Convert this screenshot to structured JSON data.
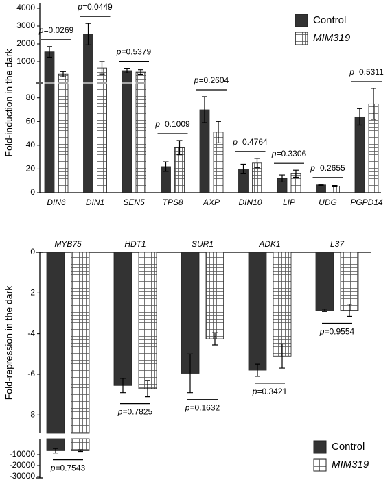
{
  "chart_data": [
    {
      "type": "bar",
      "y_label": "Fold-induction in the dark",
      "categories": [
        "DIN6",
        "DIN1",
        "SEN5",
        "TPS8",
        "AXP",
        "DIN10",
        "LIP",
        "UDG",
        "PGPD14"
      ],
      "series": [
        {
          "name": "Control",
          "color": "#333333",
          "hatch": false,
          "values": [
            1550,
            2550,
            500,
            22,
            70,
            20,
            12,
            6.5,
            64
          ],
          "errors": [
            300,
            600,
            130,
            4,
            11,
            4,
            3,
            0.5,
            7
          ]
        },
        {
          "name": "MIM319",
          "color": "#ffffff",
          "hatch": true,
          "values": [
            300,
            650,
            420,
            38,
            51,
            25,
            16,
            5.5,
            75
          ],
          "errors": [
            150,
            350,
            130,
            6,
            9,
            4,
            3,
            0.5,
            13
          ]
        }
      ],
      "p_prefix": "p=",
      "p_values": [
        "0.0269",
        "0.0449",
        "0.5379",
        "0.1009",
        "0.2604",
        "0.4764",
        "0.3306",
        "0.2655",
        "0.5311"
      ],
      "segments": [
        {
          "ylim": [
            0,
            92
          ],
          "yticks": [
            0,
            20,
            40,
            60,
            80
          ]
        },
        {
          "ylim": [
            0,
            4000
          ],
          "yticks": [
            1000,
            2000,
            3000,
            4000
          ]
        }
      ]
    },
    {
      "type": "bar",
      "y_label": "Fold-repression in the dark",
      "categories": [
        "MYB75",
        "HDT1",
        "SUR1",
        "ADK1",
        "L37"
      ],
      "series": [
        {
          "name": "Control",
          "color": "#333333",
          "hatch": false,
          "values": [
            -6500,
            -6.55,
            -5.95,
            -5.8,
            -2.85
          ],
          "errors": [
            2000,
            0.35,
            0.95,
            0.3,
            0.06
          ]
        },
        {
          "name": "MIM319",
          "color": "#ffffff",
          "hatch": true,
          "values": [
            -6500,
            -6.7,
            -4.25,
            -5.1,
            -2.85
          ],
          "errors": [
            700,
            0.4,
            0.3,
            0.6,
            0.3
          ]
        }
      ],
      "p_prefix": "p=",
      "p_values": [
        "0.7543",
        "0.7825",
        "0.1632",
        "0.3421",
        "0.9554"
      ],
      "segments": [
        {
          "ylim": [
            -8.9,
            0
          ],
          "yticks": [
            -8,
            -6,
            -4,
            -2,
            0
          ]
        },
        {
          "ylim": [
            -30000,
            0
          ],
          "yticks": [
            -10000,
            -20000,
            -30000
          ]
        }
      ]
    }
  ]
}
